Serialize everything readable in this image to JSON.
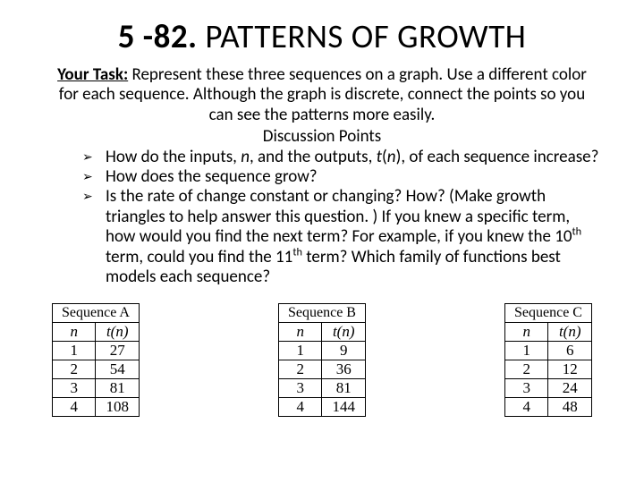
{
  "title_num": "5 -82.",
  "title_text": " PATTERNS OF GROWTH",
  "task_label": "Your Task:",
  "task_text": " Represent these three sequences on a graph.  Use a different color for each sequence.  Although the graph is discrete, connect the points so you can see the patterns more easily.",
  "discussion_label": "Discussion Points",
  "bullets": {
    "b1_pre": "How do the inputs, ",
    "b1_n": "n",
    "b1_mid": ", and the outputs, ",
    "b1_t": "t",
    "b1_paren_open": "(",
    "b1_n2": "n",
    "b1_paren_close": ")",
    "b1_post": ", of each sequence increase?",
    "b2": "How does the sequence grow?",
    "b3_pre": " Is the rate of change constant or changing?  How?  (Make growth triangles to help answer this question. ) If you knew a specific term, how would you find the next term? For example, if you knew the 10",
    "b3_sup1": "th",
    "b3_mid": " term, could you find the 11",
    "b3_sup2": "th",
    "b3_post": " term? Which family of functions best models each sequence?"
  },
  "sequences": {
    "a": {
      "name": "Sequence A",
      "col1": "n",
      "col2": "t(n)",
      "rows": [
        [
          "1",
          "27"
        ],
        [
          "2",
          "54"
        ],
        [
          "3",
          "81"
        ],
        [
          "4",
          "108"
        ]
      ]
    },
    "b": {
      "name": "Sequence B",
      "col1": "n",
      "col2": "t(n)",
      "rows": [
        [
          "1",
          "9"
        ],
        [
          "2",
          "36"
        ],
        [
          "3",
          "81"
        ],
        [
          "4",
          "144"
        ]
      ]
    },
    "c": {
      "name": "Sequence C",
      "col1": "n",
      "col2": "t(n)",
      "rows": [
        [
          "1",
          "6"
        ],
        [
          "2",
          "12"
        ],
        [
          "3",
          "24"
        ],
        [
          "4",
          "48"
        ]
      ]
    }
  },
  "arrow": "➢"
}
